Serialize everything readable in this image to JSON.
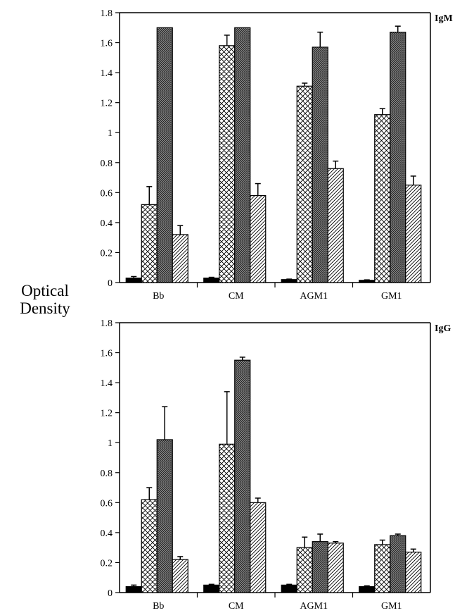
{
  "ylabel_lines": [
    "Optical",
    "Density"
  ],
  "chart_data": [
    {
      "type": "bar",
      "panel_label": "IgM",
      "categories": [
        "Bb",
        "CM",
        "AGM1",
        "GM1"
      ],
      "ylim": [
        0,
        1.8
      ],
      "yticks": [
        "0",
        "0.2",
        "0.4",
        "0.6",
        "0.8",
        "1",
        "1.2",
        "1.4",
        "1.6",
        "1.8"
      ],
      "grid": false,
      "series": [
        {
          "pattern": "solid",
          "values": [
            0.03,
            0.03,
            0.02,
            0.015
          ],
          "errors": [
            0.01,
            0.005,
            0.003,
            0.003
          ]
        },
        {
          "pattern": "crosshatch",
          "values": [
            0.52,
            1.58,
            1.31,
            1.12
          ],
          "errors": [
            0.12,
            0.07,
            0.02,
            0.04
          ]
        },
        {
          "pattern": "dense",
          "values": [
            1.7,
            1.7,
            1.57,
            1.67
          ],
          "errors": [
            0,
            0,
            0.1,
            0.04
          ]
        },
        {
          "pattern": "diagonal",
          "values": [
            0.32,
            0.58,
            0.76,
            0.65
          ],
          "errors": [
            0.06,
            0.08,
            0.05,
            0.06
          ]
        }
      ]
    },
    {
      "type": "bar",
      "panel_label": "IgG",
      "categories": [
        "Bb",
        "CM",
        "AGM1",
        "GM1"
      ],
      "ylim": [
        0,
        1.8
      ],
      "yticks": [
        "0",
        "0.2",
        "0.4",
        "0.6",
        "0.8",
        "1",
        "1.2",
        "1.4",
        "1.6",
        "1.8"
      ],
      "grid": false,
      "series": [
        {
          "pattern": "solid",
          "values": [
            0.04,
            0.05,
            0.05,
            0.04
          ],
          "errors": [
            0.01,
            0.005,
            0.005,
            0.005
          ]
        },
        {
          "pattern": "crosshatch",
          "values": [
            0.62,
            0.99,
            0.3,
            0.32
          ],
          "errors": [
            0.08,
            0.35,
            0.07,
            0.03
          ]
        },
        {
          "pattern": "dense",
          "values": [
            1.02,
            1.55,
            0.34,
            0.38
          ],
          "errors": [
            0.22,
            0.02,
            0.05,
            0.01
          ]
        },
        {
          "pattern": "diagonal",
          "values": [
            0.22,
            0.6,
            0.33,
            0.27
          ],
          "errors": [
            0.02,
            0.03,
            0.01,
            0.02
          ]
        }
      ]
    }
  ]
}
